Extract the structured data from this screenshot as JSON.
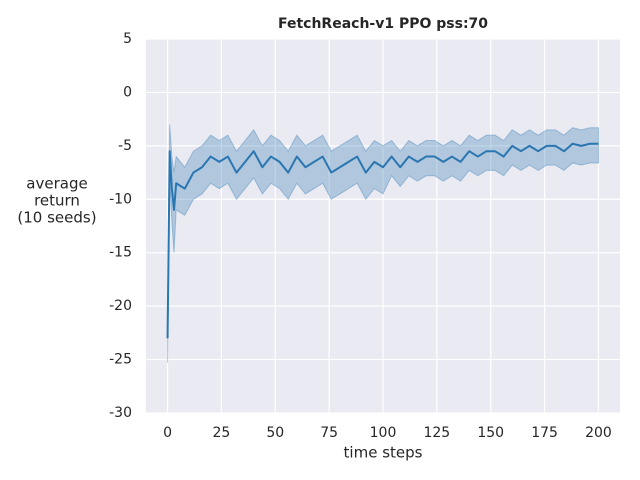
{
  "chart_data": {
    "type": "line",
    "title": "FetchReach-v1 PPO pss:70",
    "xlabel": "time steps",
    "ylabel": [
      "average",
      "return",
      "(10 seeds)"
    ],
    "xlim": [
      -10,
      210
    ],
    "ylim": [
      -30,
      5
    ],
    "xticks": [
      0,
      25,
      50,
      75,
      100,
      125,
      150,
      175,
      200
    ],
    "yticks": [
      -30,
      -25,
      -20,
      -15,
      -10,
      -5,
      0,
      5
    ],
    "grid": true,
    "x": [
      0,
      1,
      2,
      3,
      4,
      8,
      12,
      16,
      20,
      24,
      28,
      32,
      36,
      40,
      44,
      48,
      52,
      56,
      60,
      64,
      68,
      72,
      76,
      80,
      84,
      88,
      92,
      96,
      100,
      104,
      108,
      112,
      116,
      120,
      124,
      128,
      132,
      136,
      140,
      144,
      148,
      152,
      156,
      160,
      164,
      168,
      172,
      176,
      180,
      184,
      188,
      192,
      196,
      200
    ],
    "series": [
      {
        "color": "#2a76b0",
        "values": [
          -23,
          -5.5,
          -9,
          -11,
          -8.5,
          -9,
          -7.5,
          -7,
          -6,
          -6.5,
          -6,
          -7.5,
          -6.5,
          -5.5,
          -7,
          -6,
          -6.5,
          -7.5,
          -6,
          -7,
          -6.5,
          -6,
          -7.5,
          -7,
          -6.5,
          -6,
          -7.5,
          -6.5,
          -7,
          -6,
          -7,
          -6,
          -6.5,
          -6,
          -6,
          -6.5,
          -6,
          -6.5,
          -5.5,
          -6,
          -5.5,
          -5.5,
          -6,
          -5,
          -5.5,
          -5,
          -5.5,
          -5,
          -5,
          -5.5,
          -4.8,
          -5,
          -4.8,
          -4.8
        ],
        "lower": [
          -25.3,
          -8,
          -12,
          -15,
          -11,
          -11.5,
          -10,
          -9.5,
          -8.5,
          -9,
          -8.5,
          -10,
          -9,
          -8,
          -9.5,
          -8.5,
          -9,
          -10,
          -8.5,
          -9.5,
          -9,
          -8.5,
          -10,
          -9.5,
          -9,
          -8.5,
          -10,
          -9,
          -9.5,
          -7.8,
          -8.8,
          -7.8,
          -8.3,
          -7.8,
          -7.8,
          -8.3,
          -7.8,
          -8.3,
          -7.3,
          -7.8,
          -7.3,
          -7.3,
          -7.8,
          -6.8,
          -7.3,
          -6.8,
          -7.3,
          -6.8,
          -6.8,
          -7.3,
          -6.6,
          -6.8,
          -6.6,
          -6.6
        ],
        "upper": [
          -21,
          -3,
          -6,
          -7.5,
          -6,
          -7,
          -5.5,
          -5,
          -4,
          -4.5,
          -4,
          -5.5,
          -4.5,
          -3.5,
          -5,
          -4,
          -4.5,
          -5.5,
          -4,
          -5,
          -4.5,
          -4,
          -5.5,
          -5,
          -4.5,
          -4,
          -5.5,
          -4.5,
          -5,
          -4.5,
          -5.5,
          -4.5,
          -5,
          -4.5,
          -4.5,
          -5,
          -4.5,
          -5,
          -4,
          -4.5,
          -4,
          -4,
          -4.5,
          -3.5,
          -4,
          -3.5,
          -4,
          -3.5,
          -3.5,
          -4,
          -3.3,
          -3.5,
          -3.3,
          -3.3
        ]
      }
    ]
  }
}
